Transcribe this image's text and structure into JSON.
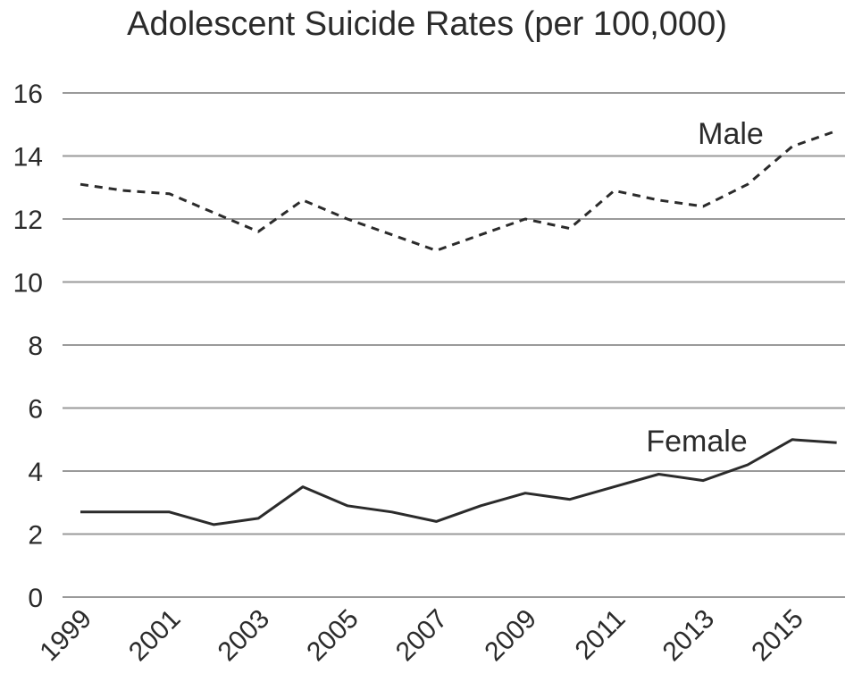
{
  "chart_data": {
    "type": "line",
    "title": "Adolescent Suicide Rates (per 100,000)",
    "xlabel": "",
    "ylabel": "",
    "x": [
      1999,
      2000,
      2001,
      2002,
      2003,
      2004,
      2005,
      2006,
      2007,
      2008,
      2009,
      2010,
      2011,
      2012,
      2013,
      2014,
      2015,
      2016
    ],
    "x_tick_labels": [
      "1999",
      "2001",
      "2003",
      "2005",
      "2007",
      "2009",
      "2011",
      "2013",
      "2015"
    ],
    "y_tick_labels": [
      "0",
      "2",
      "4",
      "6",
      "8",
      "10",
      "12",
      "14",
      "16"
    ],
    "ylim": [
      0,
      16
    ],
    "grid": true,
    "legend": "none",
    "series": [
      {
        "name": "Male",
        "style": "dashed",
        "color": "#2b2b2b",
        "values": [
          13.1,
          12.9,
          12.8,
          12.2,
          11.6,
          12.6,
          12.0,
          11.5,
          11.0,
          11.5,
          12.0,
          11.7,
          12.9,
          12.6,
          12.4,
          13.1,
          14.3,
          14.8
        ]
      },
      {
        "name": "Female",
        "style": "solid",
        "color": "#2b2b2b",
        "values": [
          2.7,
          2.7,
          2.7,
          2.3,
          2.5,
          3.5,
          2.9,
          2.7,
          2.4,
          2.9,
          3.3,
          3.1,
          3.5,
          3.9,
          3.7,
          4.2,
          5.0,
          4.9
        ]
      }
    ]
  }
}
